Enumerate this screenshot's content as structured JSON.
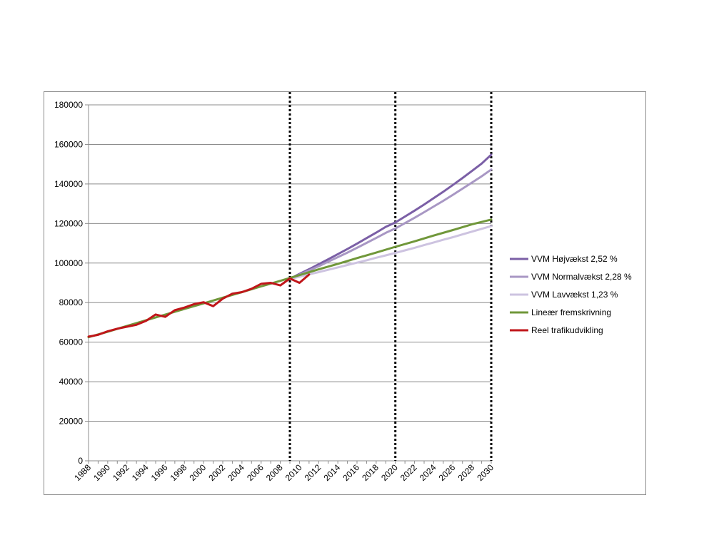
{
  "chart_data": {
    "type": "line",
    "title": "",
    "xlabel": "",
    "ylabel": "",
    "xlim": [
      1988,
      2030
    ],
    "ylim": [
      0,
      180000
    ],
    "y_ticks": [
      "0",
      "20000",
      "40000",
      "60000",
      "80000",
      "100000",
      "120000",
      "140000",
      "160000",
      "180000"
    ],
    "x_ticks": [
      "1988",
      "1990",
      "1992",
      "1994",
      "1996",
      "1998",
      "2000",
      "2002",
      "2004",
      "2006",
      "2008",
      "2010",
      "2012",
      "2014",
      "2016",
      "2018",
      "2020",
      "2022",
      "2024",
      "2026",
      "2028",
      "2030"
    ],
    "grid": "horizontal",
    "legend_position": "right",
    "vertical_markers": [
      2009,
      2020,
      2030
    ],
    "series": [
      {
        "name": "VVM Højvækst 2,52 %",
        "color": "#7b5fa6",
        "x": [
          2009,
          2010,
          2011,
          2012,
          2013,
          2014,
          2015,
          2016,
          2017,
          2018,
          2019,
          2020,
          2021,
          2022,
          2023,
          2024,
          2025,
          2026,
          2027,
          2028,
          2029,
          2030
        ],
        "y": [
          92000,
          94500,
          96900,
          99400,
          101900,
          104500,
          107100,
          109800,
          112600,
          115400,
          118300,
          120500,
          123500,
          126500,
          129600,
          132800,
          136100,
          139500,
          143000,
          146600,
          150300,
          154800
        ]
      },
      {
        "name": "VVM Normalvækst 2,28 %",
        "color": "#a897c4",
        "x": [
          2009,
          2010,
          2011,
          2012,
          2013,
          2014,
          2015,
          2016,
          2017,
          2018,
          2019,
          2020,
          2021,
          2022,
          2023,
          2024,
          2025,
          2026,
          2027,
          2028,
          2029,
          2030
        ],
        "y": [
          92000,
          94100,
          96200,
          98400,
          100700,
          103000,
          105300,
          107700,
          110200,
          112700,
          115300,
          117500,
          120200,
          122900,
          125700,
          128600,
          131500,
          134500,
          137600,
          140700,
          143900,
          147300
        ]
      },
      {
        "name": "VVM Lavvækst 1,23 %",
        "color": "#cdc3e0",
        "x": [
          2009,
          2010,
          2011,
          2012,
          2013,
          2014,
          2015,
          2016,
          2017,
          2018,
          2019,
          2020,
          2021,
          2022,
          2023,
          2024,
          2025,
          2026,
          2027,
          2028,
          2029,
          2030
        ],
        "y": [
          92000,
          93100,
          94300,
          95400,
          96600,
          97800,
          99000,
          100200,
          101400,
          102700,
          103900,
          105100,
          106400,
          107700,
          109100,
          110400,
          111800,
          113100,
          114500,
          115900,
          117300,
          118700
        ]
      },
      {
        "name": "Lineær fremskrivning",
        "color": "#70973a",
        "x": [
          1988,
          1990,
          1992,
          1994,
          1996,
          1998,
          2000,
          2002,
          2004,
          2006,
          2008,
          2010,
          2012,
          2014,
          2016,
          2018,
          2020,
          2022,
          2024,
          2026,
          2028,
          2030
        ],
        "y": [
          62500,
          65300,
          68200,
          71100,
          73900,
          76800,
          79600,
          82500,
          85300,
          88200,
          91000,
          93900,
          96800,
          99600,
          102500,
          105300,
          108200,
          111000,
          113900,
          116700,
          119600,
          122000
        ]
      },
      {
        "name": "Reel trafikudvikling",
        "color": "#c0161a",
        "x": [
          1988,
          1989,
          1990,
          1991,
          1992,
          1993,
          1994,
          1995,
          1996,
          1997,
          1998,
          1999,
          2000,
          2001,
          2002,
          2003,
          2004,
          2005,
          2006,
          2007,
          2008,
          2009,
          2010,
          2011
        ],
        "y": [
          62800,
          63700,
          65500,
          66800,
          67800,
          68800,
          70800,
          74000,
          72800,
          76200,
          77500,
          79200,
          80200,
          78200,
          82000,
          84500,
          85300,
          87000,
          89500,
          90000,
          88700,
          92200,
          90000,
          94200
        ]
      }
    ]
  }
}
